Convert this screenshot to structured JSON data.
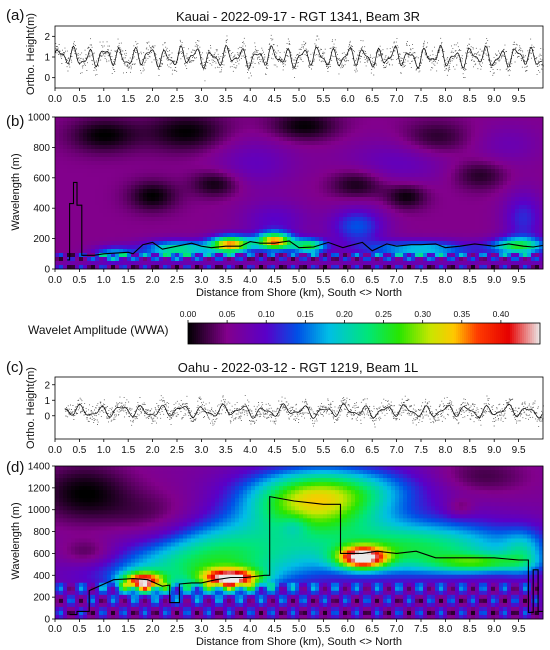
{
  "chart_data": [
    {
      "panel": "(a)",
      "type": "scatter",
      "title": "Kauai - 2022-09-17 - RGT 1341, Beam 3R",
      "ylabel": "Ortho. Height(m)",
      "xlim": [
        0,
        10
      ],
      "ylim": [
        -0.5,
        2.5
      ],
      "x_ticks": [
        "0.0",
        "0.5",
        "1.0",
        "1.5",
        "2.0",
        "2.5",
        "3.0",
        "3.5",
        "4.0",
        "4.5",
        "5.0",
        "5.5",
        "6.0",
        "6.5",
        "7.0",
        "7.5",
        "8.0",
        "8.5",
        "9.0",
        "9.5"
      ],
      "y_ticks": [
        "0",
        "1",
        "2"
      ],
      "series": [
        {
          "mean_height_m": 1.0,
          "amplitude_m": 0.6,
          "wave_count": 32,
          "noise_m": 0.25,
          "x_start": 0.0,
          "x_end": 10.0
        }
      ]
    },
    {
      "panel": "(b)",
      "type": "heatmap",
      "xlabel": "Distance from Shore (km), South <> North",
      "ylabel": "Wavelength (m)",
      "xlim": [
        0,
        10
      ],
      "ylim": [
        0,
        1000
      ],
      "x_ticks": [
        "0.0",
        "0.5",
        "1.0",
        "1.5",
        "2.0",
        "2.5",
        "3.0",
        "3.5",
        "4.0",
        "4.5",
        "5.0",
        "5.5",
        "6.0",
        "6.5",
        "7.0",
        "7.5",
        "8.0",
        "8.5",
        "9.0",
        "9.5"
      ],
      "y_ticks": [
        "0",
        "200",
        "400",
        "600",
        "800",
        "1000"
      ],
      "background_wwa": 0.05,
      "blobs": [
        {
          "x": 1.0,
          "y": 880,
          "sx": 0.5,
          "sy": 80,
          "v": -0.05
        },
        {
          "x": 2.7,
          "y": 900,
          "sx": 0.6,
          "sy": 90,
          "v": -0.05
        },
        {
          "x": 5.1,
          "y": 940,
          "sx": 0.5,
          "sy": 70,
          "v": -0.05
        },
        {
          "x": 7.8,
          "y": 860,
          "sx": 0.5,
          "sy": 80,
          "v": -0.04
        },
        {
          "x": 2.0,
          "y": 480,
          "sx": 0.35,
          "sy": 70,
          "v": -0.05
        },
        {
          "x": 3.3,
          "y": 560,
          "sx": 0.35,
          "sy": 60,
          "v": -0.05
        },
        {
          "x": 6.2,
          "y": 560,
          "sx": 0.4,
          "sy": 70,
          "v": -0.05
        },
        {
          "x": 7.2,
          "y": 480,
          "sx": 0.3,
          "sy": 60,
          "v": -0.05
        },
        {
          "x": 8.7,
          "y": 620,
          "sx": 0.4,
          "sy": 70,
          "v": -0.04
        },
        {
          "x": 4.1,
          "y": 700,
          "sx": 0.6,
          "sy": 120,
          "v": 0.04
        },
        {
          "x": 7.0,
          "y": 700,
          "sx": 0.8,
          "sy": 110,
          "v": 0.04
        },
        {
          "x": 9.3,
          "y": 820,
          "sx": 0.5,
          "sy": 100,
          "v": 0.03
        },
        {
          "x": 9.6,
          "y": 330,
          "sx": 0.3,
          "sy": 130,
          "v": 0.07
        },
        {
          "x": 6.2,
          "y": 280,
          "sx": 0.4,
          "sy": 90,
          "v": 0.09
        },
        {
          "x": 4.5,
          "y": 320,
          "sx": 0.5,
          "sy": 90,
          "v": 0.05
        },
        {
          "x": 3.6,
          "y": 160,
          "sx": 0.3,
          "sy": 40,
          "v": 0.3
        },
        {
          "x": 4.5,
          "y": 180,
          "sx": 0.25,
          "sy": 40,
          "v": 0.3
        },
        {
          "x": 5.2,
          "y": 150,
          "sx": 0.25,
          "sy": 35,
          "v": 0.2
        },
        {
          "x": 2.5,
          "y": 130,
          "sx": 0.5,
          "sy": 40,
          "v": 0.18
        },
        {
          "x": 7.5,
          "y": 130,
          "sx": 0.8,
          "sy": 40,
          "v": 0.14
        },
        {
          "x": 9.5,
          "y": 150,
          "sx": 0.4,
          "sy": 40,
          "v": 0.18
        },
        {
          "x": 1.2,
          "y": 100,
          "sx": 0.3,
          "sy": 35,
          "v": 0.12
        }
      ],
      "ripple_band_wavelength_max": 110,
      "ridge_line": {
        "x": [
          0.25,
          0.3,
          0.3,
          0.38,
          0.38,
          0.45,
          0.45,
          0.55,
          0.55,
          0.8,
          1.0,
          1.5,
          1.6,
          1.8,
          2.0,
          2.2,
          2.5,
          2.8,
          3.0,
          3.2,
          3.5,
          3.8,
          4.0,
          4.2,
          4.5,
          4.8,
          5.0,
          5.3,
          5.6,
          5.9,
          6.0,
          6.3,
          6.5,
          6.8,
          7.0,
          7.3,
          7.5,
          7.8,
          8.0,
          8.3,
          8.6,
          9.0,
          9.3,
          9.6,
          9.8,
          10.0
        ],
        "y": [
          60,
          60,
          430,
          430,
          570,
          570,
          420,
          420,
          90,
          90,
          100,
          110,
          100,
          160,
          175,
          130,
          150,
          170,
          150,
          140,
          150,
          150,
          180,
          170,
          170,
          185,
          140,
          145,
          175,
          140,
          150,
          175,
          120,
          165,
          150,
          160,
          160,
          165,
          140,
          150,
          165,
          150,
          165,
          150,
          145,
          155
        ]
      }
    },
    {
      "panel": "colorbar",
      "type": "heatmap",
      "label": "Wavelet Amplitude (WWA)",
      "range": [
        0,
        0.45
      ],
      "ticks": [
        "0.00",
        "0.05",
        "0.10",
        "0.15",
        "0.20",
        "0.25",
        "0.30",
        "0.35",
        "0.40"
      ]
    },
    {
      "panel": "(c)",
      "type": "scatter",
      "title": "Oahu - 2022-03-12 - RGT 1219, Beam 1L",
      "ylabel": "Ortho. Height(m)",
      "xlim": [
        0,
        10
      ],
      "ylim": [
        -1.5,
        2.5
      ],
      "x_ticks": [
        "0.0",
        "0.5",
        "1.0",
        "1.5",
        "2.0",
        "2.5",
        "3.0",
        "3.5",
        "4.0",
        "4.5",
        "5.0",
        "5.5",
        "6.0",
        "6.5",
        "7.0",
        "7.5",
        "8.0",
        "8.5",
        "9.0",
        "9.5"
      ],
      "y_ticks": [
        "0",
        "1",
        "2"
      ],
      "series": [
        {
          "mean_height_m": 0.3,
          "amplitude_m": 0.5,
          "wave_count": 24,
          "noise_m": 0.3,
          "x_start": 0.2,
          "x_end": 10.0
        }
      ]
    },
    {
      "panel": "(d)",
      "type": "heatmap",
      "xlabel": "Distance from Shore (km), South <> North",
      "ylabel": "Wavelength (m)",
      "xlim": [
        0,
        10
      ],
      "ylim": [
        0,
        1400
      ],
      "x_ticks": [
        "0.0",
        "0.5",
        "1.0",
        "1.5",
        "2.0",
        "2.5",
        "3.0",
        "3.5",
        "4.0",
        "4.5",
        "5.0",
        "5.5",
        "6.0",
        "6.5",
        "7.0",
        "7.5",
        "8.0",
        "8.5",
        "9.0",
        "9.5"
      ],
      "y_ticks": [
        "0",
        "200",
        "400",
        "600",
        "800",
        "1000",
        "1200",
        "1400"
      ],
      "background_wwa": 0.06,
      "blobs": [
        {
          "x": 0.6,
          "y": 1150,
          "sx": 0.7,
          "sy": 200,
          "v": -0.06
        },
        {
          "x": 0.7,
          "y": 600,
          "sx": 0.4,
          "sy": 90,
          "v": -0.05
        },
        {
          "x": 2.1,
          "y": 880,
          "sx": 0.7,
          "sy": 180,
          "v": -0.05
        },
        {
          "x": 8.7,
          "y": 1300,
          "sx": 0.7,
          "sy": 120,
          "v": -0.04
        },
        {
          "x": 5.3,
          "y": 1050,
          "sx": 1.0,
          "sy": 200,
          "v": 0.22
        },
        {
          "x": 6.0,
          "y": 1200,
          "sx": 1.3,
          "sy": 150,
          "v": 0.08
        },
        {
          "x": 3.3,
          "y": 650,
          "sx": 1.2,
          "sy": 200,
          "v": 0.14
        },
        {
          "x": 7.4,
          "y": 650,
          "sx": 1.6,
          "sy": 180,
          "v": 0.18
        },
        {
          "x": 6.3,
          "y": 560,
          "sx": 0.35,
          "sy": 70,
          "v": 0.3
        },
        {
          "x": 8.7,
          "y": 510,
          "sx": 0.7,
          "sy": 60,
          "v": 0.12
        },
        {
          "x": 1.8,
          "y": 340,
          "sx": 0.3,
          "sy": 60,
          "v": 0.3
        },
        {
          "x": 3.6,
          "y": 370,
          "sx": 0.4,
          "sy": 60,
          "v": 0.3
        },
        {
          "x": 2.8,
          "y": 420,
          "sx": 1.6,
          "sy": 150,
          "v": 0.1
        },
        {
          "x": 9.6,
          "y": 600,
          "sx": 0.3,
          "sy": 150,
          "v": 0.08
        },
        {
          "x": 8.3,
          "y": 1020,
          "sx": 0.2,
          "sy": 60,
          "v": -0.04
        },
        {
          "x": 4.9,
          "y": 850,
          "sx": 0.2,
          "sy": 70,
          "v": -0.04
        }
      ],
      "ripple_band_wavelength_max": 320,
      "ridge_line": {
        "x": [
          0.3,
          0.45,
          0.45,
          0.7,
          0.7,
          1.2,
          1.6,
          1.9,
          2.2,
          2.35,
          2.35,
          2.55,
          2.55,
          2.8,
          3.0,
          3.3,
          3.6,
          3.9,
          4.3,
          4.4,
          4.4,
          4.9,
          5.3,
          5.5,
          5.5,
          5.85,
          5.85,
          6.3,
          6.6,
          7.0,
          7.4,
          7.8,
          8.2,
          8.5,
          9.0,
          9.5,
          9.7,
          9.7,
          9.8,
          9.8,
          9.9,
          9.9,
          10.0
        ],
        "y": [
          40,
          40,
          70,
          70,
          260,
          360,
          370,
          360,
          300,
          310,
          150,
          150,
          320,
          330,
          330,
          360,
          380,
          380,
          400,
          400,
          1120,
          1080,
          1060,
          1050,
          1050,
          1050,
          600,
          600,
          620,
          600,
          620,
          560,
          560,
          560,
          560,
          540,
          540,
          60,
          60,
          450,
          450,
          70,
          70
        ]
      }
    }
  ]
}
